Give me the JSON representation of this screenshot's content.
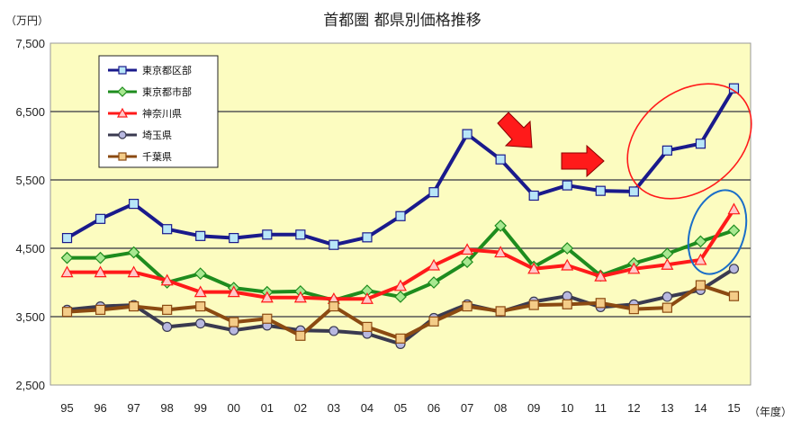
{
  "chart_data": {
    "type": "line",
    "title": "首都圏 都県別価格推移",
    "y_unit": "（万円）",
    "x_unit": "（年度）",
    "categories": [
      "95",
      "96",
      "97",
      "98",
      "99",
      "00",
      "01",
      "02",
      "03",
      "04",
      "05",
      "06",
      "07",
      "08",
      "09",
      "10",
      "11",
      "12",
      "13",
      "14",
      "15"
    ],
    "ylim": [
      2500,
      7500
    ],
    "yticks": [
      "2,500",
      "3,500",
      "4,500",
      "5,500",
      "6,500",
      "7,500"
    ],
    "ytick_values": [
      2500,
      3500,
      4500,
      5500,
      6500,
      7500
    ],
    "grid": "horizontal",
    "legend_position": "top-left",
    "background": "#fcfcc0",
    "series": [
      {
        "name": "東京都区部",
        "color": "#1a1a8c",
        "marker": "square",
        "marker_fill": "#b8e6f8",
        "values": [
          4650,
          4930,
          5150,
          4780,
          4680,
          4650,
          4700,
          4700,
          4550,
          4660,
          4970,
          5320,
          6170,
          5800,
          5270,
          5420,
          5340,
          5330,
          5930,
          6030,
          6840
        ]
      },
      {
        "name": "東京都市部",
        "color": "#1e8c1e",
        "marker": "diamond",
        "marker_fill": "#a8e890",
        "values": [
          4360,
          4360,
          4440,
          4000,
          4130,
          3920,
          3860,
          3870,
          3740,
          3880,
          3790,
          4000,
          4300,
          4830,
          4230,
          4500,
          4100,
          4280,
          4420,
          4600,
          4760
        ]
      },
      {
        "name": "神奈川県",
        "color": "#ff1a1a",
        "marker": "triangle",
        "marker_fill": "#ffc8c8",
        "values": [
          4150,
          4150,
          4150,
          4030,
          3860,
          3860,
          3780,
          3780,
          3760,
          3760,
          3950,
          4250,
          4480,
          4440,
          4200,
          4250,
          4090,
          4200,
          4260,
          4330,
          5070
        ]
      },
      {
        "name": "埼玉県",
        "color": "#3a3a50",
        "marker": "circle",
        "marker_fill": "#b8b8e0",
        "values": [
          3600,
          3650,
          3670,
          3350,
          3400,
          3300,
          3370,
          3300,
          3290,
          3250,
          3100,
          3480,
          3680,
          3570,
          3720,
          3800,
          3640,
          3680,
          3790,
          3890,
          4200
        ]
      },
      {
        "name": "千葉県",
        "color": "#8b4a12",
        "marker": "square",
        "marker_fill": "#f4cc88",
        "values": [
          3570,
          3600,
          3650,
          3600,
          3650,
          3420,
          3470,
          3220,
          3650,
          3350,
          3180,
          3430,
          3650,
          3580,
          3670,
          3680,
          3700,
          3610,
          3630,
          3960,
          3800
        ]
      }
    ],
    "annotations": [
      {
        "type": "arrow",
        "color": "#ff1a1a",
        "direction": "down-right",
        "near_category": "09"
      },
      {
        "type": "arrow",
        "color": "#ff1a1a",
        "direction": "right",
        "near_category": "11"
      },
      {
        "type": "ellipse",
        "color": "#ff1a1a",
        "around": "東京都区部 12–15"
      },
      {
        "type": "ellipse",
        "color": "#1a6ec8",
        "around": "14–15 神奈川県・東京都市部・埼玉県"
      }
    ]
  }
}
